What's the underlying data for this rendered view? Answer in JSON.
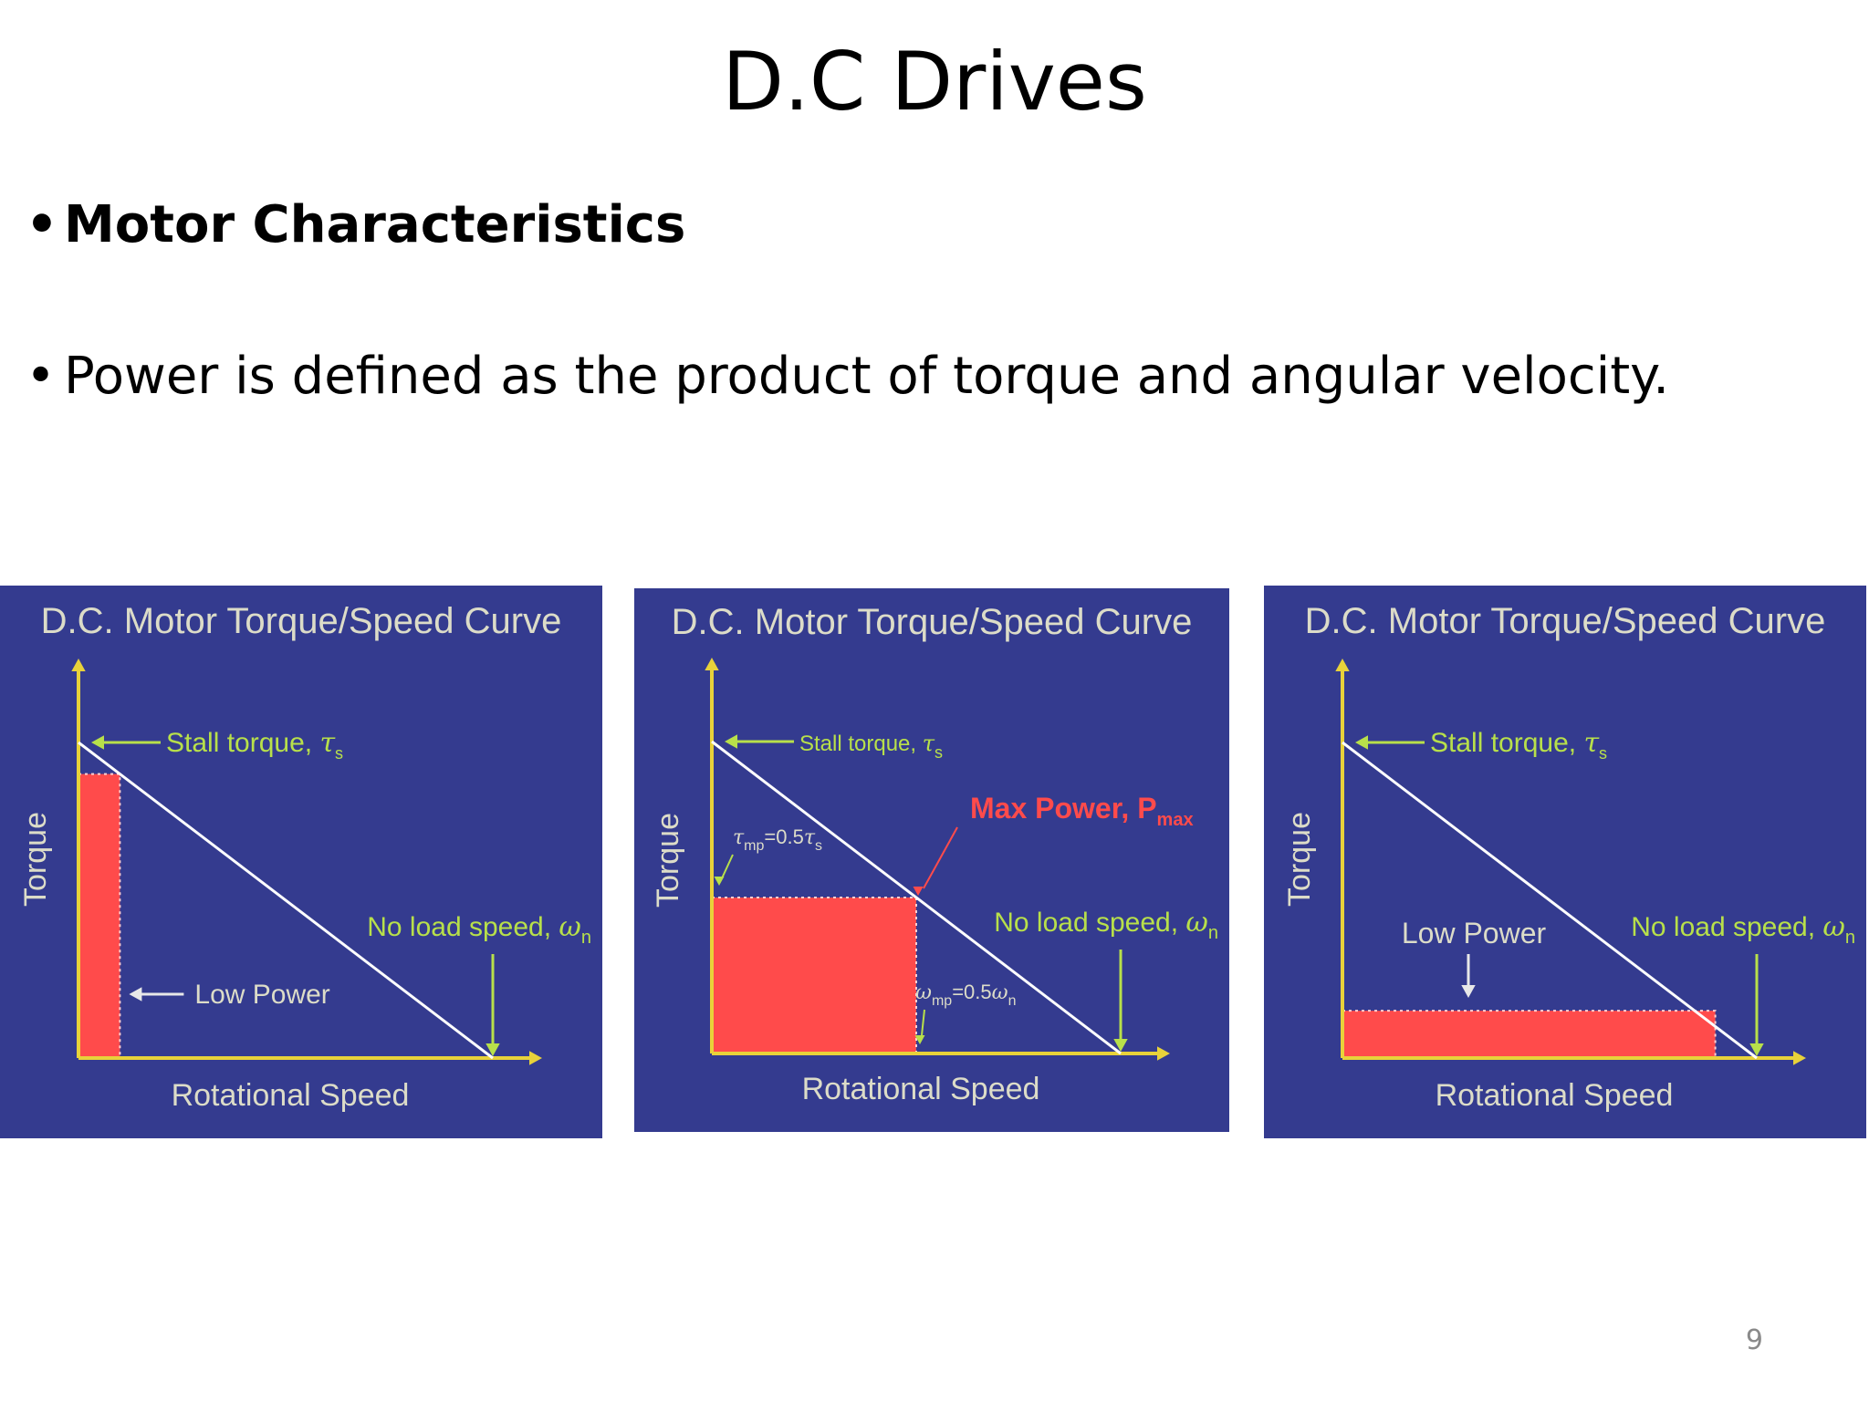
{
  "slide": {
    "title": "D.C Drives",
    "bullets": [
      "Motor Characteristics",
      "Power is defined as the product of torque and angular velocity."
    ],
    "page_number": "9"
  },
  "colors": {
    "panel_bg": "#343b8f",
    "title_text": "#dcdcc8",
    "axis": "#e8d23a",
    "annotation": "#b8e04a",
    "curve": "#ffffff",
    "power_fill": "#ff4b4b",
    "max_power_text": "#ff4b4b"
  },
  "chart_data": [
    {
      "type": "line",
      "title": "D.C. Motor Torque/Speed Curve",
      "xlabel": "Rotational Speed",
      "ylabel": "Torque",
      "curve": {
        "x": [
          0,
          1
        ],
        "y": [
          1,
          0
        ]
      },
      "power_rect": {
        "speed": 0.1,
        "torque": 0.9
      },
      "annotations": {
        "stall": {
          "text": "Stall torque, ",
          "sym": "τ",
          "sub": "s"
        },
        "noload": {
          "text": "No load speed, ",
          "sym": "ω",
          "sub": "n"
        },
        "power": {
          "text": "Low Power"
        }
      }
    },
    {
      "type": "line",
      "title": "D.C. Motor Torque/Speed Curve",
      "xlabel": "Rotational Speed",
      "ylabel": "Torque",
      "curve": {
        "x": [
          0,
          1
        ],
        "y": [
          1,
          0
        ]
      },
      "power_rect": {
        "speed": 0.5,
        "torque": 0.5
      },
      "annotations": {
        "stall": {
          "text": "Stall torque, ",
          "sym": "τ",
          "sub": "s"
        },
        "noload": {
          "text": "No load speed, ",
          "sym": "ω",
          "sub": "n"
        },
        "max_power": {
          "text": "Max Power, P",
          "sub": "max"
        },
        "tau_mp": {
          "sym": "τ",
          "sub": "mp",
          "mid": "=0.5",
          "sym2": "τ",
          "sub2": "s"
        },
        "omega_mp": {
          "sym": "ω",
          "sub": "mp",
          "mid": "=0.5",
          "sym2": "ω",
          "sub2": "n"
        }
      }
    },
    {
      "type": "line",
      "title": "D.C. Motor Torque/Speed Curve",
      "xlabel": "Rotational Speed",
      "ylabel": "Torque",
      "curve": {
        "x": [
          0,
          1
        ],
        "y": [
          1,
          0
        ]
      },
      "power_rect": {
        "speed": 0.9,
        "torque": 0.15
      },
      "annotations": {
        "stall": {
          "text": "Stall torque, ",
          "sym": "τ",
          "sub": "s"
        },
        "noload": {
          "text": "No load speed, ",
          "sym": "ω",
          "sub": "n"
        },
        "power": {
          "text": "Low Power"
        }
      }
    }
  ]
}
